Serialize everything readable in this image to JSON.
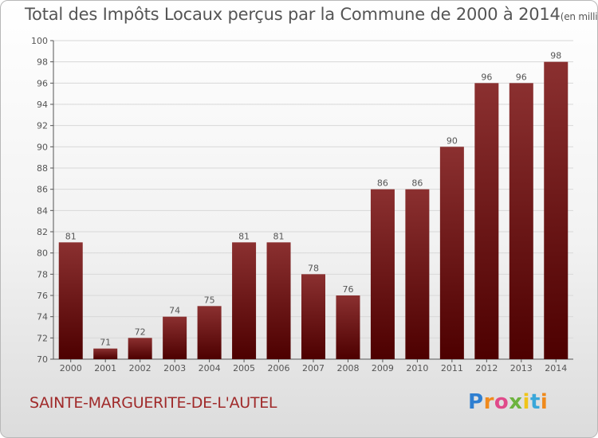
{
  "header": {
    "title": "Total des Impôts Locaux perçus par la Commune de 2000 à 2014",
    "unit": "(en milliers d'€)"
  },
  "footer": {
    "commune": "SAINTE-MARGUERITE-DE-L'AUTEL",
    "logo": "Proxiti"
  },
  "colors": {
    "bar_top": "#8b3030",
    "bar_bottom": "#4d0000",
    "axis": "#555555",
    "grid": "#d8d8d8"
  },
  "chart_data": {
    "type": "bar",
    "title": "Total des Impôts Locaux perçus par la Commune de 2000 à 2014",
    "subtitle": "(en milliers d'€)",
    "xlabel": "",
    "ylabel": "",
    "categories": [
      "2000",
      "2001",
      "2002",
      "2003",
      "2004",
      "2005",
      "2006",
      "2007",
      "2008",
      "2009",
      "2010",
      "2011",
      "2012",
      "2013",
      "2014"
    ],
    "values": [
      81,
      71,
      72,
      74,
      75,
      81,
      81,
      78,
      76,
      86,
      86,
      90,
      96,
      96,
      98
    ],
    "ylim": [
      70,
      100
    ],
    "yticks": [
      70,
      72,
      74,
      76,
      78,
      80,
      82,
      84,
      86,
      88,
      90,
      92,
      94,
      96,
      98,
      100
    ],
    "grid": true,
    "data_labels": true
  }
}
